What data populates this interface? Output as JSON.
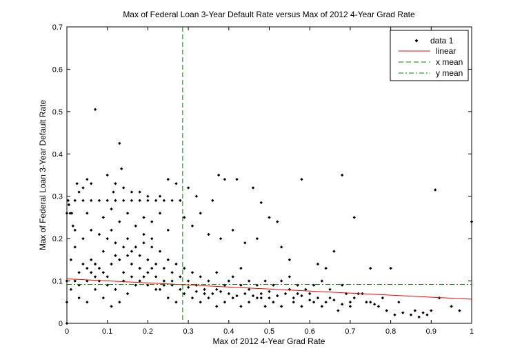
{
  "chart_data": {
    "type": "scatter",
    "title": "Max of Federal Loan 3-Year Default Rate versus Max of 2012 4-Year Grad Rate",
    "xlabel": "Max of 2012 4-Year Grad Rate",
    "ylabel": "Max of Federal Loan 3-Year Default Rate",
    "xlim": [
      0,
      1
    ],
    "ylim": [
      0,
      0.7
    ],
    "xticks": [
      "0",
      "0.1",
      "0.2",
      "0.3",
      "0.4",
      "0.5",
      "0.6",
      "0.7",
      "0.8",
      "0.9",
      "1"
    ],
    "yticks": [
      "0",
      "0.1",
      "0.2",
      "0.3",
      "0.4",
      "0.5",
      "0.6",
      "0.7"
    ],
    "grid": false,
    "legend_position": "top-right",
    "legend": [
      "data 1",
      "linear",
      "x mean",
      "y mean"
    ],
    "colors": {
      "data": "#000000",
      "linear": "#ff0000",
      "x_mean": "#008000",
      "y_mean": "#008000"
    },
    "linear_fit": {
      "x": [
        0,
        1
      ],
      "y": [
        0.105,
        0.057
      ]
    },
    "x_mean": 0.286,
    "y_mean": 0.092,
    "series": [
      {
        "name": "data 1",
        "points": [
          [
            0.0,
            0.26
          ],
          [
            0.003,
            0.29
          ],
          [
            0.005,
            0.28
          ],
          [
            0.008,
            0.26
          ],
          [
            0.012,
            0.26
          ],
          [
            0.015,
            0.23
          ],
          [
            0.02,
            0.22
          ],
          [
            0.025,
            0.33
          ],
          [
            0.03,
            0.31
          ],
          [
            0.04,
            0.32
          ],
          [
            0.05,
            0.34
          ],
          [
            0.06,
            0.33
          ],
          [
            0.07,
            0.505
          ],
          [
            0.13,
            0.425
          ],
          [
            0.135,
            0.365
          ],
          [
            0.1,
            0.35
          ],
          [
            0.115,
            0.31
          ],
          [
            0.12,
            0.33
          ],
          [
            0.14,
            0.32
          ],
          [
            0.16,
            0.31
          ],
          [
            0.18,
            0.31
          ],
          [
            0.2,
            0.3
          ],
          [
            0.23,
            0.3
          ],
          [
            0.25,
            0.34
          ],
          [
            0.27,
            0.33
          ],
          [
            0.3,
            0.32
          ],
          [
            0.32,
            0.3
          ],
          [
            0.36,
            0.29
          ],
          [
            0.375,
            0.35
          ],
          [
            0.39,
            0.34
          ],
          [
            0.42,
            0.34
          ],
          [
            0.46,
            0.32
          ],
          [
            0.48,
            0.285
          ],
          [
            0.5,
            0.25
          ],
          [
            0.52,
            0.24
          ],
          [
            0.58,
            0.34
          ],
          [
            0.68,
            0.35
          ],
          [
            0.71,
            0.25
          ],
          [
            0.91,
            0.315
          ],
          [
            1.0,
            0.24
          ],
          [
            0.02,
            0.29
          ],
          [
            0.04,
            0.29
          ],
          [
            0.06,
            0.29
          ],
          [
            0.08,
            0.29
          ],
          [
            0.1,
            0.29
          ],
          [
            0.12,
            0.29
          ],
          [
            0.14,
            0.29
          ],
          [
            0.16,
            0.29
          ],
          [
            0.18,
            0.29
          ],
          [
            0.2,
            0.29
          ],
          [
            0.22,
            0.29
          ],
          [
            0.24,
            0.29
          ],
          [
            0.26,
            0.29
          ],
          [
            0.28,
            0.29
          ],
          [
            0.05,
            0.26
          ],
          [
            0.09,
            0.25
          ],
          [
            0.11,
            0.27
          ],
          [
            0.15,
            0.26
          ],
          [
            0.19,
            0.25
          ],
          [
            0.21,
            0.24
          ],
          [
            0.23,
            0.26
          ],
          [
            0.25,
            0.22
          ],
          [
            0.29,
            0.25
          ],
          [
            0.31,
            0.23
          ],
          [
            0.33,
            0.26
          ],
          [
            0.35,
            0.21
          ],
          [
            0.38,
            0.2
          ],
          [
            0.41,
            0.22
          ],
          [
            0.44,
            0.19
          ],
          [
            0.47,
            0.2
          ],
          [
            0.53,
            0.18
          ],
          [
            0.55,
            0.15
          ],
          [
            0.62,
            0.14
          ],
          [
            0.64,
            0.13
          ],
          [
            0.66,
            0.17
          ],
          [
            0.75,
            0.13
          ],
          [
            0.8,
            0.13
          ],
          [
            0.68,
            0.09
          ],
          [
            0.72,
            0.07
          ],
          [
            0.74,
            0.05
          ],
          [
            0.77,
            0.04
          ],
          [
            0.79,
            0.03
          ],
          [
            0.81,
            0.02
          ],
          [
            0.83,
            0.025
          ],
          [
            0.85,
            0.02
          ],
          [
            0.86,
            0.03
          ],
          [
            0.87,
            0.015
          ],
          [
            0.88,
            0.025
          ],
          [
            0.89,
            0.02
          ],
          [
            0.9,
            0.03
          ],
          [
            0.95,
            0.04
          ],
          [
            0.92,
            0.06
          ],
          [
            0.97,
            0.03
          ],
          [
            0.82,
            0.05
          ],
          [
            0.78,
            0.06
          ],
          [
            0.76,
            0.045
          ],
          [
            0.7,
            0.05
          ],
          [
            0.65,
            0.06
          ],
          [
            0.6,
            0.07
          ],
          [
            0.57,
            0.09
          ],
          [
            0.55,
            0.08
          ],
          [
            0.5,
            0.06
          ],
          [
            0.48,
            0.07
          ],
          [
            0.45,
            0.08
          ],
          [
            0.43,
            0.09
          ],
          [
            0.4,
            0.1
          ],
          [
            0.37,
            0.08
          ],
          [
            0.34,
            0.07
          ],
          [
            0.32,
            0.09
          ],
          [
            0.3,
            0.1
          ],
          [
            0.28,
            0.11
          ],
          [
            0.26,
            0.12
          ],
          [
            0.24,
            0.13
          ],
          [
            0.22,
            0.14
          ],
          [
            0.2,
            0.15
          ],
          [
            0.18,
            0.16
          ],
          [
            0.16,
            0.17
          ],
          [
            0.14,
            0.18
          ],
          [
            0.12,
            0.19
          ],
          [
            0.1,
            0.2
          ],
          [
            0.08,
            0.21
          ],
          [
            0.06,
            0.22
          ],
          [
            0.04,
            0.2
          ],
          [
            0.02,
            0.18
          ],
          [
            0.01,
            0.15
          ],
          [
            0.03,
            0.12
          ],
          [
            0.05,
            0.1
          ],
          [
            0.07,
            0.08
          ],
          [
            0.09,
            0.06
          ],
          [
            0.11,
            0.04
          ],
          [
            0.13,
            0.05
          ],
          [
            0.15,
            0.07
          ],
          [
            0.17,
            0.09
          ],
          [
            0.19,
            0.11
          ],
          [
            0.21,
            0.13
          ],
          [
            0.23,
            0.08
          ],
          [
            0.25,
            0.06
          ],
          [
            0.27,
            0.05
          ],
          [
            0.29,
            0.07
          ],
          [
            0.31,
            0.06
          ],
          [
            0.33,
            0.05
          ],
          [
            0.35,
            0.06
          ],
          [
            0.37,
            0.04
          ],
          [
            0.39,
            0.05
          ],
          [
            0.41,
            0.06
          ],
          [
            0.43,
            0.04
          ],
          [
            0.45,
            0.05
          ],
          [
            0.47,
            0.06
          ],
          [
            0.49,
            0.04
          ],
          [
            0.51,
            0.05
          ],
          [
            0.53,
            0.04
          ],
          [
            0.56,
            0.05
          ],
          [
            0.58,
            0.04
          ],
          [
            0.61,
            0.05
          ],
          [
            0.63,
            0.04
          ],
          [
            0.67,
            0.03
          ],
          [
            0.0,
            0.0
          ],
          [
            0.0,
            0.1
          ],
          [
            0.0,
            0.05
          ],
          [
            0.06,
            0.15
          ],
          [
            0.08,
            0.13
          ],
          [
            0.1,
            0.11
          ],
          [
            0.12,
            0.16
          ],
          [
            0.14,
            0.12
          ],
          [
            0.16,
            0.14
          ],
          [
            0.18,
            0.13
          ],
          [
            0.2,
            0.12
          ],
          [
            0.22,
            0.11
          ],
          [
            0.24,
            0.1
          ],
          [
            0.26,
            0.09
          ],
          [
            0.28,
            0.08
          ],
          [
            0.3,
            0.085
          ],
          [
            0.32,
            0.075
          ],
          [
            0.34,
            0.08
          ],
          [
            0.36,
            0.07
          ],
          [
            0.38,
            0.075
          ],
          [
            0.4,
            0.07
          ],
          [
            0.42,
            0.065
          ],
          [
            0.44,
            0.07
          ],
          [
            0.46,
            0.065
          ],
          [
            0.48,
            0.06
          ],
          [
            0.5,
            0.075
          ],
          [
            0.52,
            0.065
          ],
          [
            0.54,
            0.07
          ],
          [
            0.56,
            0.06
          ],
          [
            0.58,
            0.065
          ],
          [
            0.6,
            0.055
          ],
          [
            0.62,
            0.06
          ],
          [
            0.64,
            0.05
          ],
          [
            0.66,
            0.055
          ],
          [
            0.68,
            0.045
          ],
          [
            0.7,
            0.04
          ],
          [
            0.03,
            0.06
          ],
          [
            0.05,
            0.05
          ],
          [
            0.07,
            0.14
          ],
          [
            0.09,
            0.17
          ],
          [
            0.11,
            0.22
          ],
          [
            0.13,
            0.24
          ],
          [
            0.15,
            0.2
          ],
          [
            0.17,
            0.23
          ],
          [
            0.19,
            0.19
          ],
          [
            0.21,
            0.18
          ],
          [
            0.23,
            0.17
          ],
          [
            0.25,
            0.15
          ],
          [
            0.27,
            0.14
          ],
          [
            0.29,
            0.13
          ],
          [
            0.31,
            0.12
          ],
          [
            0.33,
            0.11
          ],
          [
            0.35,
            0.1
          ],
          [
            0.37,
            0.12
          ],
          [
            0.39,
            0.09
          ],
          [
            0.41,
            0.11
          ],
          [
            0.43,
            0.13
          ],
          [
            0.45,
            0.1
          ],
          [
            0.47,
            0.09
          ],
          [
            0.49,
            0.1
          ],
          [
            0.51,
            0.09
          ],
          [
            0.53,
            0.1
          ],
          [
            0.55,
            0.11
          ],
          [
            0.57,
            0.07
          ],
          [
            0.59,
            0.08
          ],
          [
            0.61,
            0.09
          ],
          [
            0.63,
            0.1
          ],
          [
            0.65,
            0.08
          ],
          [
            0.69,
            0.07
          ],
          [
            0.71,
            0.06
          ],
          [
            0.73,
            0.07
          ],
          [
            0.75,
            0.05
          ],
          [
            0.04,
            0.14
          ],
          [
            0.06,
            0.12
          ],
          [
            0.08,
            0.1
          ],
          [
            0.1,
            0.09
          ],
          [
            0.12,
            0.08
          ],
          [
            0.14,
            0.1
          ],
          [
            0.16,
            0.11
          ],
          [
            0.18,
            0.1
          ],
          [
            0.2,
            0.09
          ],
          [
            0.22,
            0.08
          ],
          [
            0.24,
            0.09
          ],
          [
            0.26,
            0.1
          ],
          [
            0.02,
            0.1
          ],
          [
            0.01,
            0.08
          ],
          [
            0.03,
            0.09
          ],
          [
            0.05,
            0.13
          ],
          [
            0.07,
            0.11
          ],
          [
            0.09,
            0.12
          ],
          [
            0.11,
            0.14
          ],
          [
            0.13,
            0.15
          ],
          [
            0.15,
            0.16
          ],
          [
            0.17,
            0.18
          ],
          [
            0.19,
            0.21
          ],
          [
            0.21,
            0.2
          ]
        ]
      }
    ]
  }
}
